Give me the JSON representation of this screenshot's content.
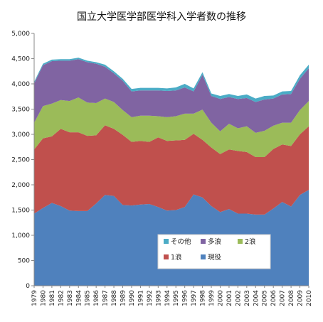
{
  "chart_data": {
    "type": "area",
    "stacked": true,
    "title": "国立大学医学部医学科入学者数の推移",
    "xlabel": "",
    "ylabel": "",
    "ylim": [
      0,
      5000
    ],
    "yticks": [
      0,
      500,
      1000,
      1500,
      2000,
      2500,
      3000,
      3500,
      4000,
      4500,
      5000
    ],
    "ytick_labels": [
      "0",
      "500",
      "1,000",
      "1,500",
      "2,000",
      "2,500",
      "3,000",
      "3,500",
      "4,000",
      "4,500",
      "5,000"
    ],
    "grid": false,
    "legend_position": "bottom-right-inside",
    "x": [
      "1979",
      "1980",
      "1981",
      "1982",
      "1983",
      "1984",
      "1985",
      "1986",
      "1987",
      "1988",
      "1989",
      "1990",
      "1991",
      "1992",
      "1993",
      "1994",
      "1995",
      "1996",
      "1997",
      "1998",
      "1999",
      "2000",
      "2001",
      "2002",
      "2003",
      "2004",
      "2005",
      "2006",
      "2007",
      "2008",
      "2009",
      "2010"
    ],
    "series": [
      {
        "name": "現役",
        "color": "#4f81bd",
        "values": [
          1430,
          1540,
          1640,
          1580,
          1490,
          1480,
          1480,
          1630,
          1800,
          1780,
          1600,
          1590,
          1610,
          1620,
          1560,
          1490,
          1500,
          1560,
          1810,
          1750,
          1580,
          1460,
          1520,
          1430,
          1430,
          1410,
          1410,
          1530,
          1660,
          1570,
          1800,
          1900
        ]
      },
      {
        "name": "1浪",
        "color": "#c0504d",
        "values": [
          1270,
          1380,
          1320,
          1530,
          1550,
          1560,
          1490,
          1350,
          1380,
          1330,
          1390,
          1260,
          1260,
          1230,
          1380,
          1380,
          1380,
          1330,
          1200,
          1140,
          1160,
          1150,
          1180,
          1240,
          1220,
          1140,
          1140,
          1180,
          1140,
          1200,
          1200,
          1260
        ]
      },
      {
        "name": "2浪",
        "color": "#9bbb59",
        "values": [
          530,
          640,
          650,
          570,
          620,
          690,
          660,
          640,
          530,
          530,
          490,
          490,
          500,
          520,
          420,
          470,
          480,
          520,
          400,
          600,
          490,
          450,
          510,
          450,
          510,
          480,
          520,
          460,
          430,
          460,
          480,
          500
        ]
      },
      {
        "name": "多浪",
        "color": "#8064a2",
        "values": [
          780,
          810,
          840,
          780,
          800,
          760,
          800,
          780,
          630,
          570,
          580,
          510,
          500,
          500,
          510,
          520,
          510,
          520,
          440,
          690,
          530,
          640,
          530,
          580,
          560,
          610,
          620,
          540,
          560,
          570,
          620,
          650
        ]
      },
      {
        "name": "その他",
        "color": "#4bacc6",
        "values": [
          30,
          30,
          30,
          30,
          30,
          30,
          30,
          30,
          40,
          40,
          40,
          50,
          50,
          50,
          50,
          50,
          60,
          70,
          60,
          50,
          50,
          60,
          60,
          60,
          70,
          70,
          70,
          60,
          60,
          60,
          70,
          70
        ]
      }
    ]
  }
}
